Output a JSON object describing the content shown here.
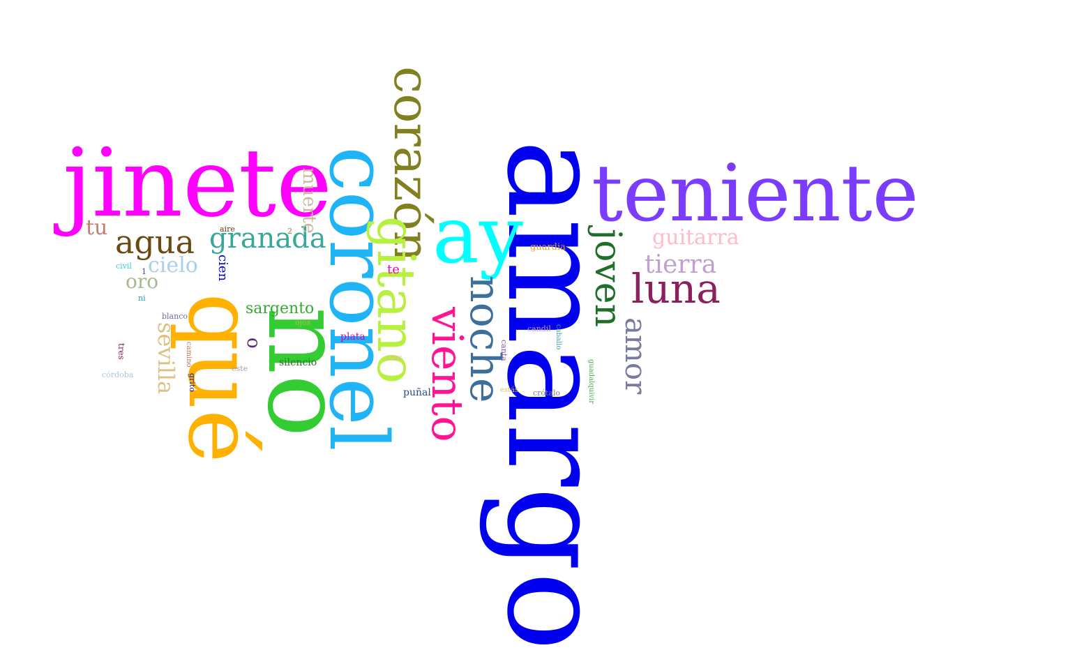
{
  "words": [
    {
      "text": "amargo",
      "color": "#0000ee",
      "vertical": true
    },
    {
      "text": "teniente",
      "color": "#7b3cff",
      "vertical": false
    },
    {
      "text": "jinete",
      "color": "#ff00ff",
      "vertical": false
    },
    {
      "text": "coronel",
      "color": "#1fb4f5",
      "vertical": true
    },
    {
      "text": "no",
      "color": "#33cc33",
      "vertical": true
    },
    {
      "text": "qué",
      "color": "#ffb000",
      "vertical": true
    },
    {
      "text": "ay",
      "color": "#00ffff",
      "vertical": false
    },
    {
      "text": "corazón",
      "color": "#808020",
      "vertical": true
    },
    {
      "text": "gitano",
      "color": "#b8f040",
      "vertical": true
    },
    {
      "text": "viento",
      "color": "#ff1493",
      "vertical": true
    },
    {
      "text": "noche",
      "color": "#3e6e9a",
      "vertical": true
    },
    {
      "text": "joven",
      "color": "#1f6e2a",
      "vertical": true
    },
    {
      "text": "luna",
      "color": "#8e1f5e",
      "vertical": false
    },
    {
      "text": "amor",
      "color": "#7a7aa0",
      "vertical": true
    },
    {
      "text": "tierra",
      "color": "#c0a0d0",
      "vertical": false
    },
    {
      "text": "guitarra",
      "color": "#ffbcc8",
      "vertical": false
    },
    {
      "text": "agua",
      "color": "#6b4a12",
      "vertical": false
    },
    {
      "text": "granada",
      "color": "#3aa898",
      "vertical": false
    },
    {
      "text": "muerte",
      "color": "#c8b8a0",
      "vertical": true
    },
    {
      "text": "tu",
      "color": "#c08070",
      "vertical": false
    },
    {
      "text": "cielo",
      "color": "#a8d0e8",
      "vertical": false
    },
    {
      "text": "oro",
      "color": "#a8b890",
      "vertical": false
    },
    {
      "text": "sevilla",
      "color": "#e0c080",
      "vertical": true
    },
    {
      "text": "sargento",
      "color": "#33aa33",
      "vertical": false
    },
    {
      "text": "cien",
      "color": "#0000cc",
      "vertical": true
    },
    {
      "text": "o",
      "color": "#5a2a7a",
      "vertical": true
    },
    {
      "text": "silencio",
      "color": "#3a6a3a",
      "vertical": false
    },
    {
      "text": "plata",
      "color": "#dd00aa",
      "vertical": false
    },
    {
      "text": "te",
      "color": "#ee00cc",
      "vertical": false
    },
    {
      "text": "puñal",
      "color": "#2a4a8a",
      "vertical": false
    },
    {
      "text": "guardia",
      "color": "#e0a020",
      "vertical": false
    },
    {
      "text": "aire",
      "color": "#6a3a10",
      "vertical": false
    },
    {
      "text": "2",
      "color": "#808040",
      "vertical": false
    },
    {
      "text": "1",
      "color": "#404080",
      "vertical": false
    },
    {
      "text": "civil",
      "color": "#30d0e0",
      "vertical": false
    },
    {
      "text": "ni",
      "color": "#20a0a0",
      "vertical": false
    },
    {
      "text": "blanco",
      "color": "#6a6a9a",
      "vertical": false
    },
    {
      "text": "ojos",
      "color": "#b0c050",
      "vertical": false
    },
    {
      "text": "tres",
      "color": "#7a1a5a",
      "vertical": true
    },
    {
      "text": "camino",
      "color": "#c07050",
      "vertical": true
    },
    {
      "text": "grito",
      "color": "#2020b0",
      "vertical": true
    },
    {
      "text": "este",
      "color": "#a0a0a0",
      "vertical": false
    },
    {
      "text": "córdoba",
      "color": "#a8c8e0",
      "vertical": false
    },
    {
      "text": "cruz",
      "color": "#f0b0b0",
      "vertical": false
    },
    {
      "text": "candil",
      "color": "#c0a0b0",
      "vertical": false
    },
    {
      "text": "caballo",
      "color": "#40a0a0",
      "vertical": true
    },
    {
      "text": "canta",
      "color": "#8a5ab0",
      "vertical": true
    },
    {
      "text": "estás",
      "color": "#e0c060",
      "vertical": false
    },
    {
      "text": "crótalo",
      "color": "#808080",
      "vertical": false
    },
    {
      "text": "guadalquivir",
      "color": "#40b040",
      "vertical": true
    }
  ]
}
